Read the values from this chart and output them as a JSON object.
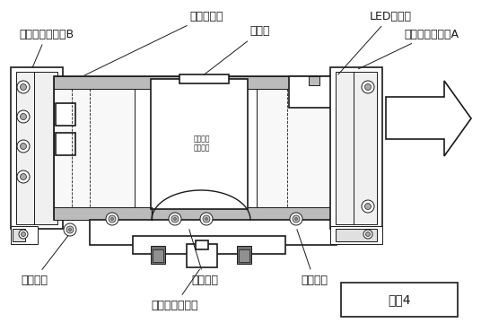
{
  "bg_color": "#ffffff",
  "line_color": "#1a1a1a",
  "fig_label": "図・4",
  "labels": {
    "inverter": "インバータ",
    "battery": "蓄電池",
    "led_lamp": "LEDランプ",
    "lamp_bracket_b": "ランプ取付金具B",
    "lamp_bracket_a": "ランプ取付金具A",
    "screw1": "取付ねじ",
    "screw2": "取付ねじ",
    "screw3": "取付ねじ",
    "battery_bracket": "蓄電池押え金具"
  },
  "fontsize": 9,
  "fig_fontsize": 10
}
